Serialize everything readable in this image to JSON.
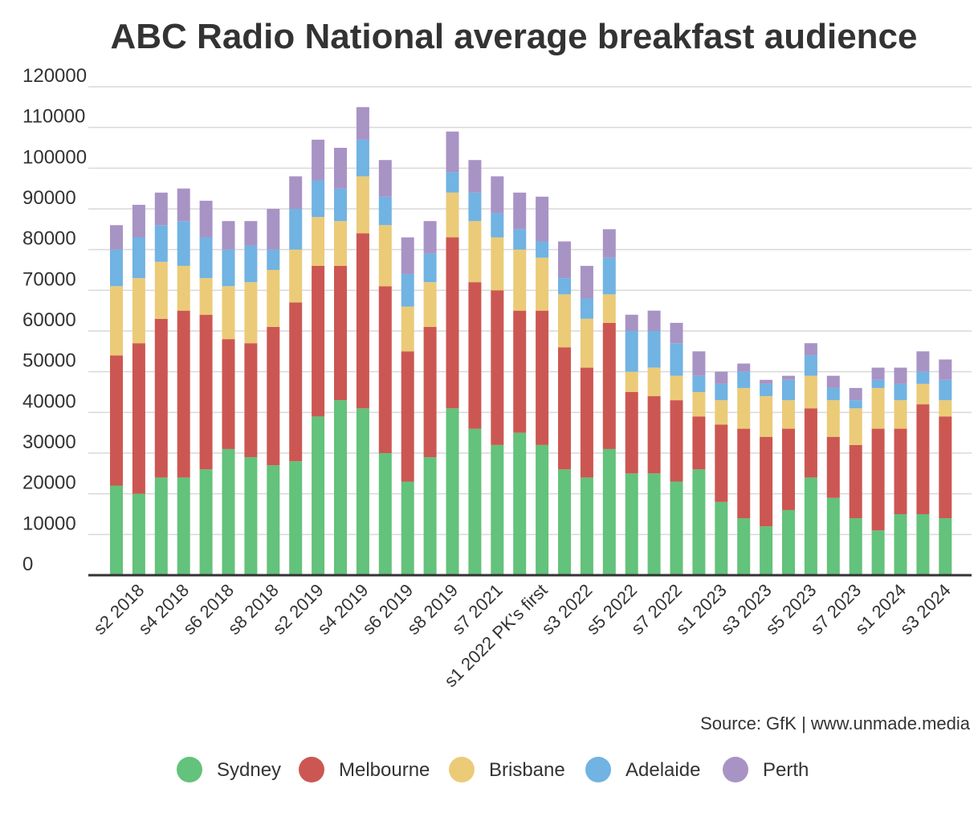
{
  "chart_data": {
    "type": "bar",
    "stacked": true,
    "title": "ABC Radio National average breakfast audience",
    "source": "Source: GfK | www.unmade.media",
    "ylim": [
      0,
      120000
    ],
    "y_ticks": [
      0,
      10000,
      20000,
      30000,
      40000,
      50000,
      60000,
      70000,
      80000,
      90000,
      100000,
      110000,
      120000
    ],
    "grid": true,
    "legend_position": "bottom",
    "x_tick_labels": [
      "s2 2018",
      "s4 2018",
      "s6 2018",
      "s8 2018",
      "s2 2019",
      "s4 2019",
      "s6 2019",
      "s8 2019",
      "s7 2021",
      "s1 2022 PK's first",
      "s3 2022",
      "s5 2022",
      "s7 2022",
      "s1 2023",
      "s3 2023",
      "s5 2023",
      "s7 2023",
      "s1 2024",
      "s3 2024"
    ],
    "series": [
      {
        "name": "Sydney",
        "color": "#63c27b",
        "values": [
          22000,
          20000,
          24000,
          24000,
          26000,
          31000,
          29000,
          27000,
          28000,
          39000,
          43000,
          41000,
          30000,
          23000,
          29000,
          41000,
          36000,
          32000,
          35000,
          32000,
          26000,
          24000,
          31000,
          25000,
          25000,
          23000,
          26000,
          18000,
          14000,
          12000,
          16000,
          24000,
          19000,
          14000,
          11000,
          15000,
          15000,
          14000
        ]
      },
      {
        "name": "Melbourne",
        "color": "#cc5752",
        "values": [
          32000,
          37000,
          39000,
          41000,
          38000,
          27000,
          28000,
          34000,
          39000,
          37000,
          33000,
          43000,
          41000,
          32000,
          32000,
          42000,
          36000,
          38000,
          30000,
          33000,
          30000,
          27000,
          31000,
          20000,
          19000,
          20000,
          13000,
          19000,
          22000,
          22000,
          20000,
          17000,
          15000,
          18000,
          25000,
          21000,
          27000,
          25000
        ]
      },
      {
        "name": "Brisbane",
        "color": "#ebcb78",
        "values": [
          17000,
          16000,
          14000,
          11000,
          9000,
          13000,
          15000,
          14000,
          13000,
          12000,
          11000,
          14000,
          15000,
          11000,
          11000,
          11000,
          15000,
          13000,
          15000,
          13000,
          13000,
          12000,
          7000,
          5000,
          7000,
          6000,
          6000,
          6000,
          10000,
          10000,
          7000,
          8000,
          9000,
          9000,
          10000,
          7000,
          5000,
          4000
        ]
      },
      {
        "name": "Adelaide",
        "color": "#71b3e2",
        "values": [
          9000,
          10000,
          9000,
          11000,
          10000,
          9000,
          9000,
          5000,
          10000,
          9000,
          8000,
          9000,
          7000,
          8000,
          7000,
          5000,
          7000,
          6000,
          5000,
          4000,
          4000,
          5000,
          9000,
          10000,
          9000,
          8000,
          4000,
          4000,
          4000,
          3000,
          5000,
          5000,
          3000,
          2000,
          2000,
          4000,
          3000,
          5000
        ]
      },
      {
        "name": "Perth",
        "color": "#a893c5",
        "values": [
          6000,
          8000,
          8000,
          8000,
          9000,
          7000,
          6000,
          10000,
          8000,
          10000,
          10000,
          8000,
          9000,
          9000,
          8000,
          10000,
          8000,
          9000,
          9000,
          11000,
          9000,
          8000,
          7000,
          4000,
          5000,
          5000,
          6000,
          3000,
          2000,
          1000,
          1000,
          3000,
          3000,
          3000,
          3000,
          4000,
          5000,
          5000
        ]
      }
    ]
  }
}
